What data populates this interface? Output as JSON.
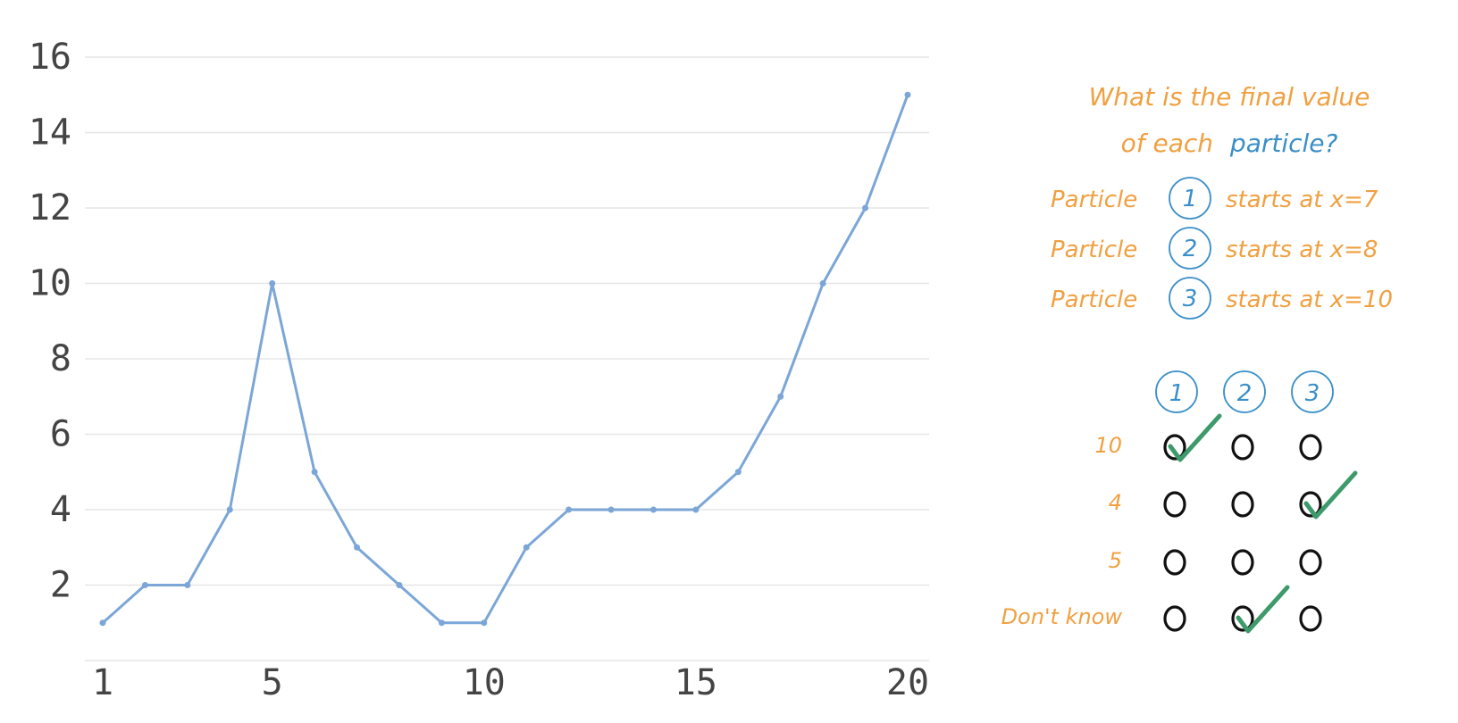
{
  "chart_data": {
    "type": "line",
    "x": [
      1,
      2,
      3,
      4,
      5,
      6,
      7,
      8,
      9,
      10,
      11,
      12,
      13,
      14,
      15,
      16,
      17,
      18,
      19,
      20
    ],
    "series": [
      {
        "values": [
          1,
          2,
          2,
          4,
          10,
          5,
          3,
          2,
          1,
          1,
          3,
          4,
          4,
          4,
          4,
          5,
          7,
          10,
          12,
          15
        ]
      }
    ],
    "title": "",
    "xlabel": "",
    "ylabel": "",
    "x_ticks": [
      "1",
      "5",
      "10",
      "15",
      "20"
    ],
    "y_ticks": [
      "2",
      "4",
      "6",
      "8",
      "10",
      "12",
      "14",
      "16"
    ],
    "ylim": [
      0,
      16
    ],
    "xlim": [
      1,
      20
    ],
    "grid": "horizontal",
    "line_color": "#7ba6d6"
  },
  "quiz": {
    "question_line1": "What is the final value",
    "question_line2a": "of each",
    "question_line2b": "particle?",
    "particles": [
      {
        "label": "Particle",
        "number": "1",
        "text": "starts at x=7"
      },
      {
        "label": "Particle",
        "number": "2",
        "text": "starts at x=8"
      },
      {
        "label": "Particle",
        "number": "3",
        "text": "starts at x=10"
      }
    ],
    "columns": [
      "1",
      "2",
      "3"
    ],
    "rows": [
      {
        "label": "10",
        "checked": [
          true,
          false,
          false
        ]
      },
      {
        "label": "4",
        "checked": [
          false,
          false,
          true
        ]
      },
      {
        "label": "5",
        "checked": [
          false,
          false,
          false
        ]
      },
      {
        "label": "Don't know",
        "checked": [
          false,
          true,
          false
        ]
      }
    ],
    "colors": {
      "orange": "#f0a040",
      "blue": "#3a8fc8",
      "check_green": "#3d9a6a",
      "option_black": "#111111"
    }
  }
}
